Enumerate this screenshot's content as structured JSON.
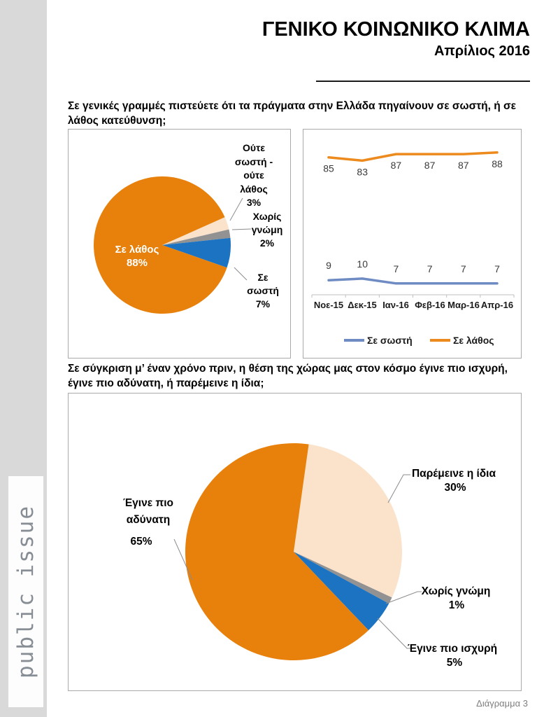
{
  "page": {
    "title": "ΓΕΝΙΚΟ ΚΟΙΝΩΝΙΚΟ ΚΛΙΜΑ",
    "subtitle": "Απρίλιος 2016",
    "brand": "public issue",
    "footer": "Διάγραμμα 3"
  },
  "questions": {
    "q1_line1": "Σε γενικές γραμμές πιστεύετε ότι τα πράγματα στην Ελλάδα πηγαίνουν σε σωστή, ή σε",
    "q1_line2": "λάθος κατεύθυνση;",
    "q2_line1": "Σε σύγκριση μ’ έναν χρόνο πριν, η θέση της χώρας μας στον κόσμο έγινε πιο ισχυρή,",
    "q2_line2": "έγινε πιο αδύνατη, ή παρέμεινε η ίδια;"
  },
  "colors": {
    "pie_orange": "#e8800c",
    "pie_peach": "#fbe3cb",
    "pie_gray": "#929292",
    "pie_blue": "#1b73c2",
    "line_blue": "#6e8cc3",
    "line_orange": "#ed8a1e",
    "axis_gray": "#bfbfbf",
    "sidebar_gray": "#d9d9d9"
  },
  "chart_data": [
    {
      "id": "direction-pie",
      "type": "pie",
      "slices": [
        {
          "label": "Σε λάθος",
          "value": 88,
          "color": "#e8800c"
        },
        {
          "label": "Ούτε σωστή - ούτε λάθος",
          "value": 3,
          "color": "#fbe3cb"
        },
        {
          "label": "Χωρίς γνώμη",
          "value": 2,
          "color": "#929292"
        },
        {
          "label": "Σε σωστή",
          "value": 7,
          "color": "#1b73c2"
        }
      ],
      "callouts": {
        "neither": [
          "Ούτε",
          "σωστή -",
          "ούτε",
          "λάθος",
          "3%"
        ],
        "no_opinion": [
          "Χωρίς",
          "γνώμη",
          "2%"
        ],
        "right_direction": [
          "Σε",
          "σωστή",
          "7%"
        ],
        "wrong_direction_inside": [
          "Σε λάθος",
          "88%"
        ]
      }
    },
    {
      "id": "direction-trend",
      "type": "line",
      "categories": [
        "Νοε-15",
        "Δεκ-15",
        "Ιαν-16",
        "Φεβ-16",
        "Μαρ-16",
        "Απρ-16"
      ],
      "series": [
        {
          "name": "Σε σωστή",
          "color": "#6e8cc3",
          "values": [
            9,
            10,
            7,
            7,
            7,
            7
          ],
          "label_position": "above"
        },
        {
          "name": "Σε λάθος",
          "color": "#ed8a1e",
          "values": [
            85,
            83,
            87,
            87,
            87,
            88
          ],
          "label_position": "below"
        }
      ],
      "legend_position": "bottom",
      "value_axis_visible": false,
      "ylim": [
        0,
        100
      ]
    },
    {
      "id": "world-position-pie",
      "type": "pie",
      "slices": [
        {
          "label": "Έγινε πιο αδύνατη",
          "value": 65,
          "color": "#e8800c"
        },
        {
          "label": "Παρέμεινε η ίδια",
          "value": 30,
          "color": "#fbe3cb"
        },
        {
          "label": "Χωρίς γνώμη",
          "value": 1,
          "color": "#929292"
        },
        {
          "label": "Έγινε πιο ισχυρή",
          "value": 5,
          "color": "#1b73c2"
        }
      ],
      "callouts": {
        "same": [
          "Παρέμεινε η ίδια",
          "30%"
        ],
        "no_opinion": [
          "Χωρίς γνώμη",
          "1%"
        ],
        "stronger": [
          "Έγινε πιο ισχυρή",
          "5%"
        ],
        "weaker": [
          "Έγινε πιο",
          "αδύνατη",
          "65%"
        ]
      }
    }
  ]
}
